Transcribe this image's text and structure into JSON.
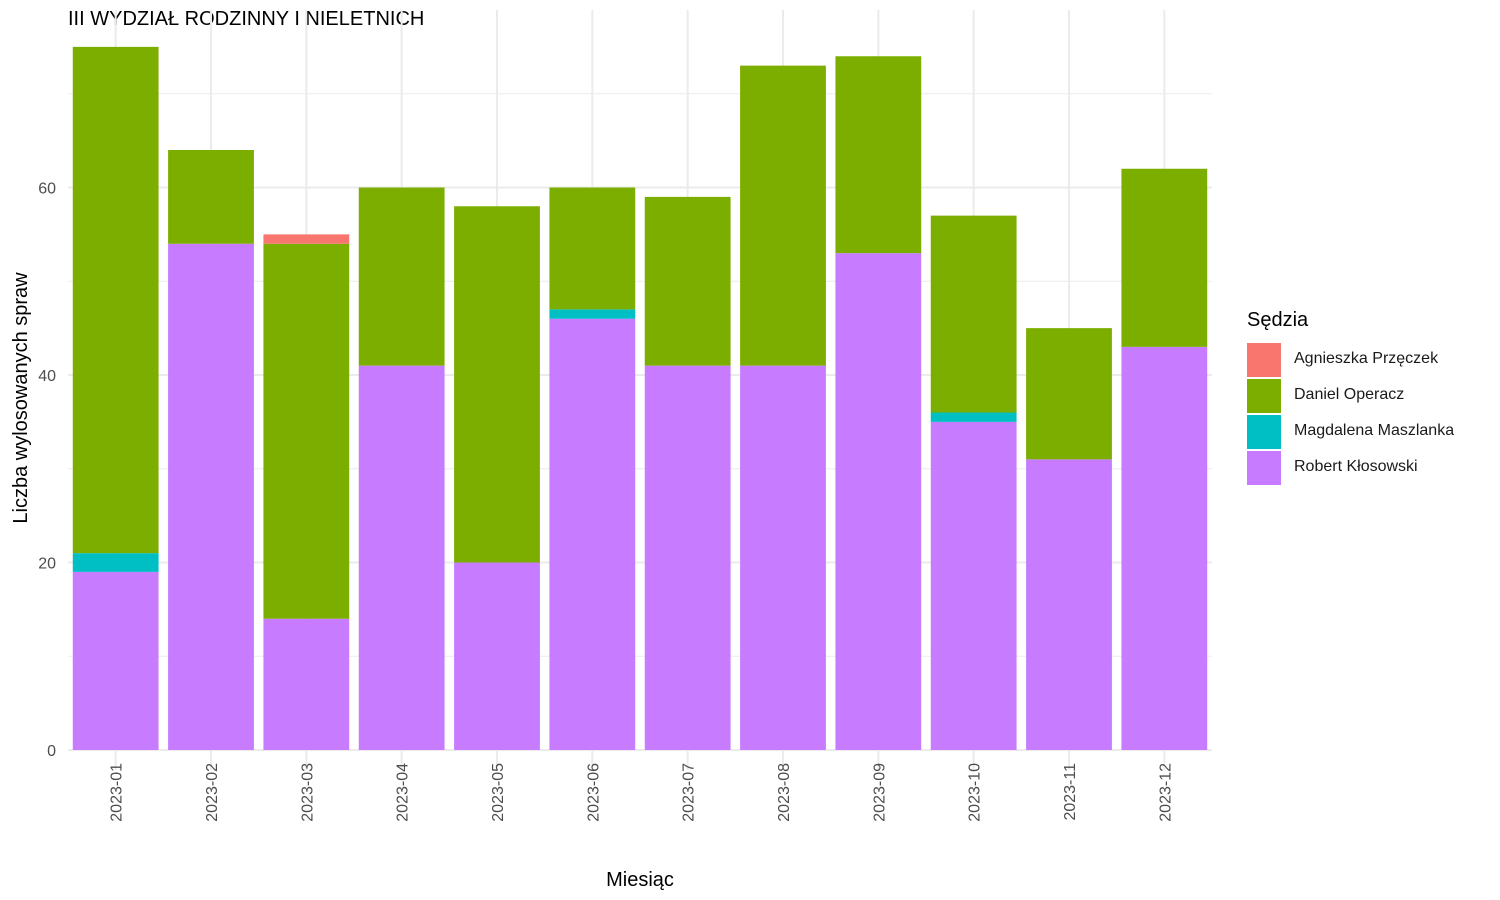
{
  "chart_data": {
    "type": "bar",
    "stacked": true,
    "title": "III WYDZIAŁ RODZINNY I NIELETNICH",
    "xlabel": "Miesiąc",
    "ylabel": "Liczba wylosowanych spraw",
    "ylim": [
      0,
      75
    ],
    "yticks": [
      0,
      20,
      40,
      60
    ],
    "grid": true,
    "legend_position": "right",
    "legend_title": "Sędzia",
    "categories": [
      "2023-01",
      "2023-02",
      "2023-03",
      "2023-04",
      "2023-05",
      "2023-06",
      "2023-07",
      "2023-08",
      "2023-09",
      "2023-10",
      "2023-11",
      "2023-12"
    ],
    "series": [
      {
        "name": "Robert Kłosowski",
        "color": "#C77CFF",
        "values": [
          19,
          54,
          14,
          41,
          20,
          46,
          41,
          41,
          53,
          35,
          31,
          43
        ]
      },
      {
        "name": "Magdalena Maszlanka",
        "color": "#00BFC4",
        "values": [
          2,
          0,
          0,
          0,
          0,
          1,
          0,
          0,
          0,
          1,
          0,
          0
        ]
      },
      {
        "name": "Daniel Operacz",
        "color": "#7CAE00",
        "values": [
          54,
          10,
          40,
          19,
          38,
          13,
          18,
          32,
          21,
          21,
          14,
          19
        ]
      },
      {
        "name": "Agnieszka Przęczek",
        "color": "#F8766D",
        "values": [
          0,
          0,
          1,
          0,
          0,
          0,
          0,
          0,
          0,
          0,
          0,
          0
        ]
      }
    ],
    "legend_order": [
      "Agnieszka Przęczek",
      "Daniel Operacz",
      "Magdalena Maszlanka",
      "Robert Kłosowski"
    ]
  }
}
